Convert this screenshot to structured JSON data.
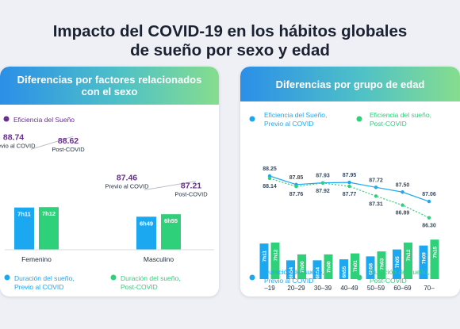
{
  "title_line1": "Impacto del COVID-19 en los hábitos globales",
  "title_line2": "de sueño por sexo y edad",
  "colors": {
    "pre": "#1ca8f0",
    "post": "#2ed07a",
    "efficiency": "#6a2c8f",
    "line": "#b8bfc9",
    "text": "#1e2a3a"
  },
  "left": {
    "header_line1": "Diferencias por factores relacionados",
    "header_line2": "con el sexo",
    "legend_efficiency": "Eficiencia del Sueño",
    "legend_pre_line1": "Duración del sueño,",
    "legend_pre_line2": "Previo al COVID",
    "legend_post_line1": "Duración del sueño,",
    "legend_post_line2": "Post-COVID",
    "pre_tag": "Previo al COVID",
    "post_tag": "Post-COVID"
  },
  "right": {
    "header": "Diferencias por grupo de edad",
    "legend_eff_pre_line1": "Eficiencia del Sueño,",
    "legend_eff_pre_line2": "Previo al COVID",
    "legend_eff_post_line1": "Eficiencia del sueño,",
    "legend_eff_post_line2": "Post-COVID",
    "legend_pre_line1": "Duración del sueño,",
    "legend_pre_line2": "Previo al COVID",
    "legend_post_line1": "Duración del sueño,",
    "legend_post_line2": "Post-COVID"
  },
  "chart_data": [
    {
      "type": "bar",
      "categories": [
        "Femenino",
        "Masculino"
      ],
      "series": [
        {
          "name": "Duración del sueño, Previo al COVID",
          "labels": [
            "7h11",
            "6h49"
          ],
          "values_minutes": [
            431,
            409
          ]
        },
        {
          "name": "Duración del sueño, Post-COVID",
          "labels": [
            "7h12",
            "6h55"
          ],
          "values_minutes": [
            432,
            415
          ]
        }
      ],
      "efficiency": {
        "name": "Eficiencia del Sueño",
        "pre": [
          88.74,
          87.46
        ],
        "post": [
          88.62,
          87.21
        ]
      }
    },
    {
      "type": "bar",
      "categories": [
        "–19",
        "20–29",
        "30–39",
        "40–49",
        "50–59",
        "60–69",
        "70–"
      ],
      "series": [
        {
          "name": "Duración del sueño, Previo al COVID",
          "labels": [
            "7h11",
            "6h54",
            "6h54",
            "6h55",
            "6h58",
            "7h05",
            "7h09"
          ],
          "values_minutes": [
            431,
            414,
            414,
            415,
            418,
            425,
            429
          ]
        },
        {
          "name": "Duración del sueño, Post-COVID",
          "labels": [
            "7h12",
            "7h00",
            "7h00",
            "7h01",
            "7h03",
            "7h12",
            "7h15"
          ],
          "values_minutes": [
            432,
            420,
            420,
            421,
            423,
            432,
            435
          ]
        }
      ],
      "efficiency": [
        {
          "name": "Eficiencia del Sueño, Previo al COVID",
          "values": [
            88.25,
            87.85,
            87.93,
            87.95,
            87.72,
            87.5,
            87.06
          ]
        },
        {
          "name": "Eficiencia del sueño, Post-COVID",
          "values": [
            88.14,
            87.76,
            87.92,
            87.77,
            87.31,
            86.89,
            86.3
          ]
        }
      ]
    }
  ]
}
